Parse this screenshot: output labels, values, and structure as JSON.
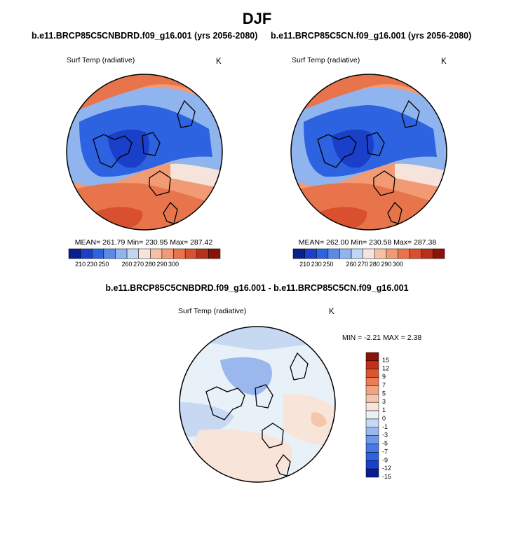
{
  "figure": {
    "season": "DJF",
    "diff_title": "b.e11.BRCP85C5CNBDRD.f09_g16.001 - b.e11.BRCP85C5CN.f09_g16.001"
  },
  "colors": {
    "abs_scale": [
      "#0a1e8c",
      "#1a3fc8",
      "#2d62e0",
      "#5a8ae6",
      "#8fb4ee",
      "#c2d6f2",
      "#f6e4dc",
      "#f5c0a6",
      "#f29a74",
      "#e8744c",
      "#d8502e",
      "#b8301a",
      "#8a1208"
    ],
    "diff_scale": [
      "#0a1e8c",
      "#1a3fc8",
      "#2d62e0",
      "#4a78e4",
      "#6f98e8",
      "#9ab8ee",
      "#c6d8f2",
      "#e8f0f8",
      "#f8e4d8",
      "#f5c6ac",
      "#f2a482",
      "#ec7e56",
      "#dc5630",
      "#c0301a",
      "#8a1208"
    ],
    "ocean_cold": "#2d62e0",
    "ocean_warm": "#e8744c"
  },
  "chart_data": [
    {
      "type": "heatmap",
      "title": "b.e11.BRCP85C5CNBDRD.f09_g16.001 (yrs 2056-2080)",
      "variable": "Surf Temp (radiative)",
      "units": "K",
      "stats": "MEAN= 261.79   Min= 230.95   Max= 287.42",
      "colorbar_labels": [
        "210",
        "230",
        "250",
        "260",
        "270",
        "280",
        "290",
        "300"
      ]
    },
    {
      "type": "heatmap",
      "title": "b.e11.BRCP85C5CN.f09_g16.001 (yrs 2056-2080)",
      "variable": "Surf Temp (radiative)",
      "units": "K",
      "stats": "MEAN= 262.00   Min= 230.58   Max= 287.38",
      "colorbar_labels": [
        "210",
        "230",
        "250",
        "260",
        "270",
        "280",
        "290",
        "300"
      ]
    },
    {
      "type": "heatmap",
      "title": "b.e11.BRCP85C5CNBDRD.f09_g16.001 - b.e11.BRCP85C5CN.f09_g16.001",
      "variable": "Surf Temp (radiative)",
      "units": "K",
      "stats": "MIN =  -2.21 MAX =   2.38",
      "colorbar_labels": [
        "15",
        "12",
        "9",
        "7",
        "5",
        "3",
        "1",
        "0",
        "-1",
        "-3",
        "-5",
        "-7",
        "-9",
        "-12",
        "-15"
      ]
    }
  ]
}
